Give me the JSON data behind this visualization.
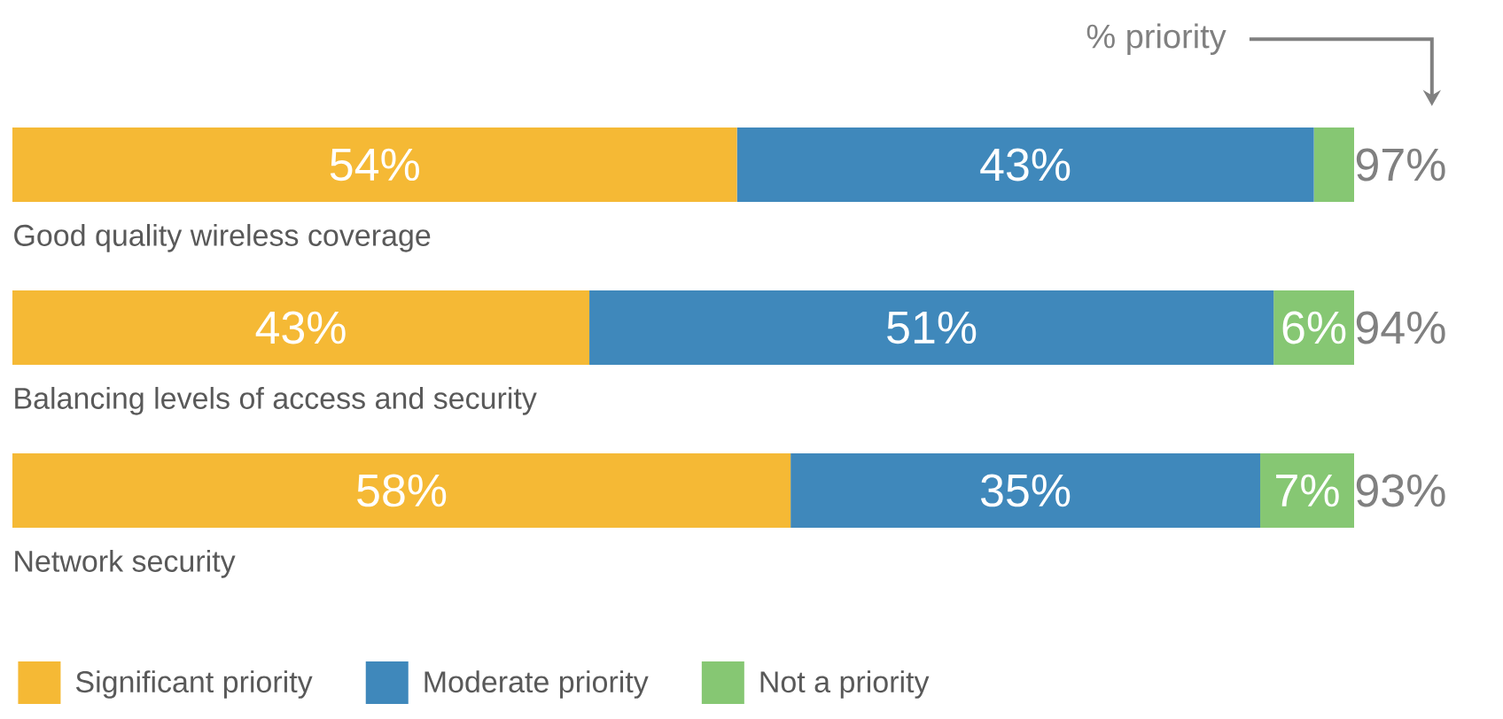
{
  "chart_data": {
    "type": "bar",
    "orientation": "horizontal",
    "stacked": true,
    "categories": [
      "Good quality wireless coverage",
      "Balancing levels of access and security",
      "Network security"
    ],
    "series": [
      {
        "name": "Significant priority",
        "color": "#f5b935",
        "values": [
          54,
          43,
          58
        ],
        "value_labels": [
          "54%",
          "43%",
          "58%"
        ]
      },
      {
        "name": "Moderate priority",
        "color": "#3f88bb",
        "values": [
          43,
          51,
          35
        ],
        "value_labels": [
          "43%",
          "51%",
          "35%"
        ]
      },
      {
        "name": "Not a priority",
        "color": "#86c773",
        "values": [
          3,
          6,
          7
        ],
        "value_labels": [
          null,
          "6%",
          "7%"
        ]
      }
    ],
    "annotations": [
      "% priority",
      "97%",
      "94%",
      "93%"
    ],
    "legend": "bottom"
  }
}
